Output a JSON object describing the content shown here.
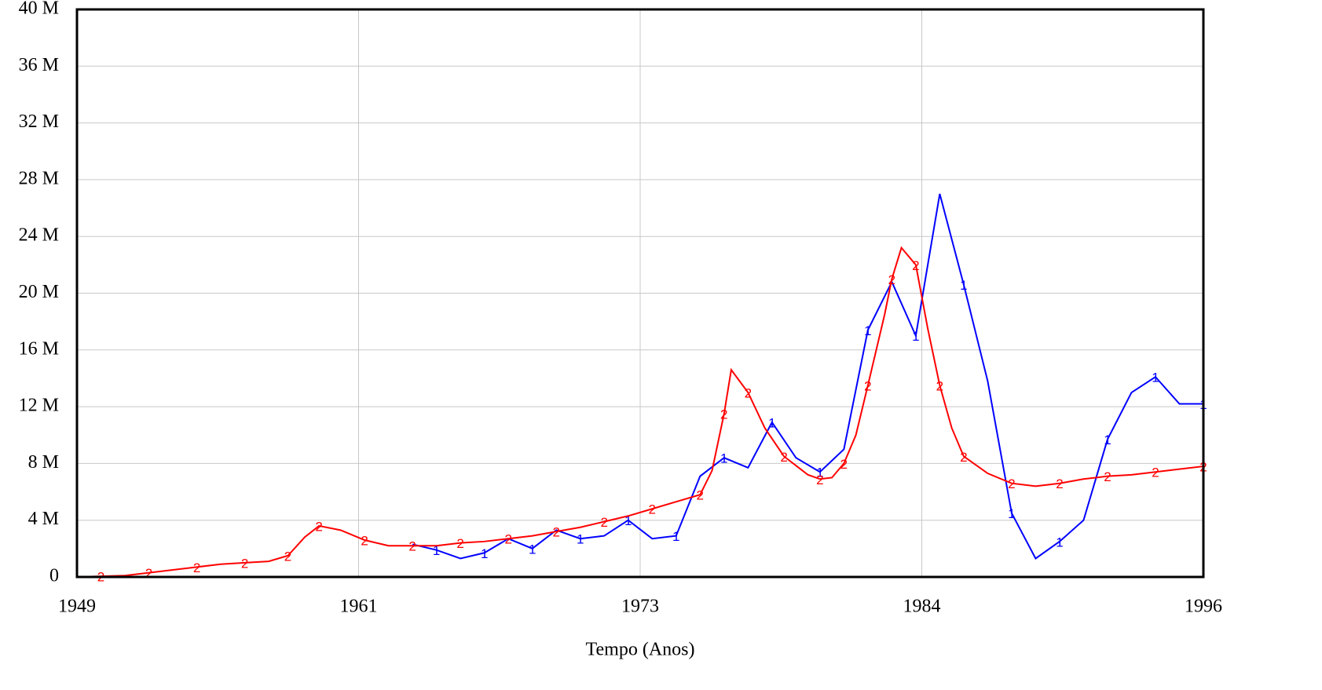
{
  "chart_data": {
    "type": "line",
    "x_label": "Tempo (Anos)",
    "xlim": [
      1949,
      1996
    ],
    "xticks": [
      1949,
      {
        "value": 1960.75,
        "label": "1961"
      },
      {
        "value": 1972.5,
        "label": "1973"
      },
      {
        "value": 1984.25,
        "label": "1984"
      },
      1996
    ],
    "ylim": [
      0,
      40
    ],
    "yticks": [
      0,
      {
        "value": 4,
        "label": "4 M"
      },
      {
        "value": 8,
        "label": "8 M"
      },
      {
        "value": 12,
        "label": "12 M"
      },
      {
        "value": 16,
        "label": "16 M"
      },
      {
        "value": 20,
        "label": "20 M"
      },
      {
        "value": 24,
        "label": "24 M"
      },
      {
        "value": 28,
        "label": "28 M"
      },
      {
        "value": 32,
        "label": "32 M"
      },
      {
        "value": 36,
        "label": "36 M"
      },
      {
        "value": 40,
        "label": "40 M"
      }
    ],
    "grid": true,
    "series": [
      {
        "name": "1",
        "color": "#0000ff",
        "x": [
          1963,
          1964,
          1965,
          1966,
          1967,
          1968,
          1969,
          1970,
          1971,
          1972,
          1973,
          1974,
          1975,
          1976,
          1977,
          1978,
          1979,
          1980,
          1981,
          1982,
          1983,
          1984,
          1985,
          1986,
          1987,
          1988,
          1989,
          1990,
          1991,
          1992,
          1993,
          1994,
          1995,
          1996
        ],
        "values": [
          2.3,
          1.9,
          1.3,
          1.7,
          2.7,
          2.0,
          3.3,
          2.7,
          2.9,
          4.0,
          2.7,
          2.9,
          7.1,
          8.4,
          7.7,
          10.9,
          8.4,
          7.4,
          9.0,
          17.4,
          20.8,
          17.0,
          27.0,
          20.6,
          13.8,
          4.5,
          1.3,
          2.5,
          4.0,
          9.7,
          13.0,
          14.1,
          12.2,
          12.2
        ]
      },
      {
        "name": "2",
        "color": "#ff0000",
        "x": [
          1949,
          1950,
          1951,
          1952,
          1953,
          1954,
          1955,
          1956,
          1957,
          1957.8,
          1958.5,
          1959.1,
          1960,
          1961,
          1962,
          1963,
          1964,
          1965,
          1966,
          1967,
          1968,
          1969,
          1970,
          1971,
          1972,
          1973,
          1974,
          1975,
          1975.5,
          1976,
          1976.3,
          1977,
          1977.7,
          1978.5,
          1979.5,
          1980,
          1980.5,
          1981,
          1981.5,
          1982,
          1982.7,
          1983,
          1983.4,
          1984,
          1984.5,
          1985,
          1985.5,
          1986,
          1987,
          1988,
          1989,
          1990,
          1991,
          1992,
          1993,
          1994,
          1995,
          1996
        ],
        "values": [
          0.0,
          0.05,
          0.1,
          0.3,
          0.5,
          0.7,
          0.9,
          1.0,
          1.1,
          1.5,
          2.8,
          3.6,
          3.3,
          2.6,
          2.2,
          2.2,
          2.2,
          2.4,
          2.5,
          2.7,
          2.9,
          3.2,
          3.5,
          3.9,
          4.3,
          4.8,
          5.3,
          5.8,
          7.5,
          11.5,
          14.6,
          13.0,
          10.5,
          8.5,
          7.2,
          6.9,
          7.0,
          8.0,
          10.0,
          13.5,
          18.5,
          21.0,
          23.2,
          22.0,
          17.5,
          13.5,
          10.5,
          8.5,
          7.3,
          6.6,
          6.4,
          6.6,
          6.9,
          7.1,
          7.2,
          7.4,
          7.6,
          7.8
        ]
      }
    ]
  }
}
